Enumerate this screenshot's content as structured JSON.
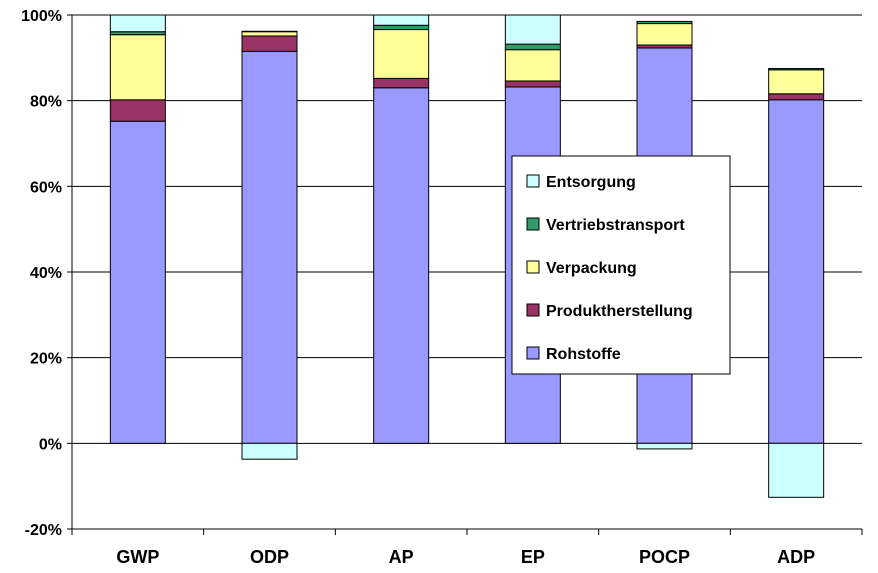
{
  "chart_data": {
    "type": "bar",
    "stacked": true,
    "title": "",
    "xlabel": "",
    "ylabel": "",
    "categories": [
      "GWP",
      "ODP",
      "AP",
      "EP",
      "POCP",
      "ADP"
    ],
    "ylim": [
      -20,
      100
    ],
    "yticks": [
      -20,
      0,
      20,
      40,
      60,
      80,
      100
    ],
    "ytick_labels": [
      "-20%",
      "0%",
      "20%",
      "40%",
      "60%",
      "80%",
      "100%"
    ],
    "grid": true,
    "legend_position": "right-center",
    "series": [
      {
        "name": "Rohstoffe",
        "color": "#9999ff",
        "values": [
          75.2,
          91.5,
          83.0,
          83.2,
          92.3,
          80.2
        ]
      },
      {
        "name": "Produktherstellung",
        "color": "#993366",
        "values": [
          5.0,
          3.6,
          2.2,
          1.4,
          0.7,
          1.4
        ]
      },
      {
        "name": "Verpackung",
        "color": "#ffff99",
        "values": [
          15.2,
          1.0,
          11.4,
          7.3,
          5.0,
          5.6
        ]
      },
      {
        "name": "Vertriebstransport",
        "color": "#339966",
        "values": [
          0.7,
          0.1,
          1.0,
          1.3,
          0.5,
          0.3
        ]
      },
      {
        "name": "Entsorgung",
        "color": "#ccffff",
        "values": [
          3.9,
          -3.7,
          2.4,
          6.8,
          -1.3,
          -12.6
        ]
      }
    ],
    "legend_order": [
      "Entsorgung",
      "Vertriebstransport",
      "Verpackung",
      "Produktherstellung",
      "Rohstoffe"
    ]
  }
}
